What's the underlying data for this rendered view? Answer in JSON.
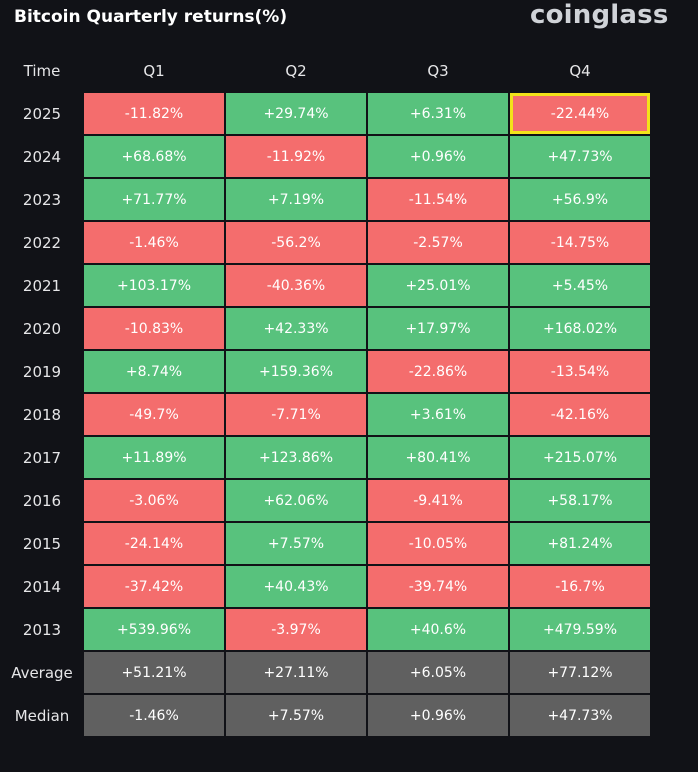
{
  "title": "Bitcoin Quarterly returns(%)",
  "brand": "coinglass",
  "colors": {
    "background": "#111217",
    "positive": "#58c27d",
    "negative": "#f46d6d",
    "summary": "#606060",
    "highlight": "#f3e21a"
  },
  "chart_data": {
    "type": "table",
    "row_header": "Time",
    "columns": [
      "Q1",
      "Q2",
      "Q3",
      "Q4"
    ],
    "rows": [
      {
        "label": "2025",
        "values": [
          "-11.82%",
          "+29.74%",
          "+6.31%",
          "-22.44%"
        ],
        "highlight": 3
      },
      {
        "label": "2024",
        "values": [
          "+68.68%",
          "-11.92%",
          "+0.96%",
          "+47.73%"
        ]
      },
      {
        "label": "2023",
        "values": [
          "+71.77%",
          "+7.19%",
          "-11.54%",
          "+56.9%"
        ]
      },
      {
        "label": "2022",
        "values": [
          "-1.46%",
          "-56.2%",
          "-2.57%",
          "-14.75%"
        ]
      },
      {
        "label": "2021",
        "values": [
          "+103.17%",
          "-40.36%",
          "+25.01%",
          "+5.45%"
        ]
      },
      {
        "label": "2020",
        "values": [
          "-10.83%",
          "+42.33%",
          "+17.97%",
          "+168.02%"
        ]
      },
      {
        "label": "2019",
        "values": [
          "+8.74%",
          "+159.36%",
          "-22.86%",
          "-13.54%"
        ]
      },
      {
        "label": "2018",
        "values": [
          "-49.7%",
          "-7.71%",
          "+3.61%",
          "-42.16%"
        ]
      },
      {
        "label": "2017",
        "values": [
          "+11.89%",
          "+123.86%",
          "+80.41%",
          "+215.07%"
        ]
      },
      {
        "label": "2016",
        "values": [
          "-3.06%",
          "+62.06%",
          "-9.41%",
          "+58.17%"
        ]
      },
      {
        "label": "2015",
        "values": [
          "-24.14%",
          "+7.57%",
          "-10.05%",
          "+81.24%"
        ]
      },
      {
        "label": "2014",
        "values": [
          "-37.42%",
          "+40.43%",
          "-39.74%",
          "-16.7%"
        ]
      },
      {
        "label": "2013",
        "values": [
          "+539.96%",
          "-3.97%",
          "+40.6%",
          "+479.59%"
        ]
      }
    ],
    "summary_rows": [
      {
        "label": "Average",
        "values": [
          "+51.21%",
          "+27.11%",
          "+6.05%",
          "+77.12%"
        ]
      },
      {
        "label": "Median",
        "values": [
          "-1.46%",
          "+7.57%",
          "+0.96%",
          "+47.73%"
        ]
      }
    ]
  }
}
